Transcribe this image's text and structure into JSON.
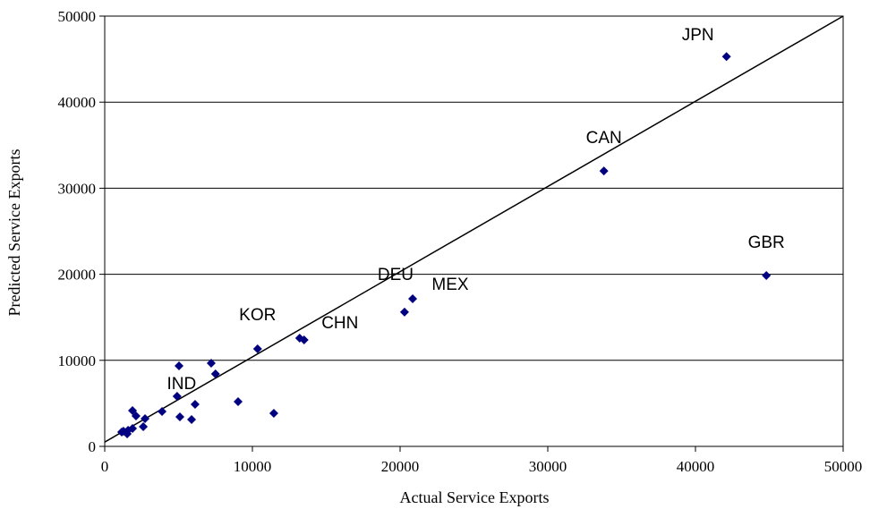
{
  "chart_data": {
    "type": "scatter",
    "x_label": "Actual Service Exports",
    "y_label": "Predicted Service Exports",
    "xlim": [
      0,
      50000
    ],
    "ylim": [
      0,
      50000
    ],
    "xticks": [
      0,
      10000,
      20000,
      30000,
      40000,
      50000
    ],
    "yticks": [
      0,
      10000,
      20000,
      30000,
      40000,
      50000
    ],
    "grid": true,
    "series": [
      {
        "color": "#000080",
        "x": [
          42100,
          33800,
          44800,
          20850,
          20300,
          10350,
          13200,
          13500,
          4900,
          5030,
          7210,
          7500,
          9030,
          11450,
          6120,
          5880,
          5090,
          3880,
          2730,
          2610,
          1880,
          2120,
          1880,
          1580,
          1270,
          1150,
          1520
        ],
        "values": [
          45300,
          32000,
          19850,
          17150,
          15600,
          11330,
          12580,
          12370,
          5820,
          9360,
          9670,
          8420,
          5200,
          3850,
          4890,
          3120,
          3430,
          4050,
          3220,
          2290,
          4160,
          3530,
          2080,
          1870,
          1770,
          1660,
          1460
        ],
        "labels": [
          "JPN",
          "CAN",
          "GBR",
          "MEX",
          "DEU",
          "KOR",
          "CHN",
          null,
          "IND",
          null,
          null,
          null,
          null,
          null,
          null,
          null,
          null,
          null,
          null,
          null,
          null,
          null,
          null,
          null,
          null,
          null,
          null
        ]
      }
    ],
    "fit_line": {
      "color": "#000000",
      "x": [
        0,
        50000
      ],
      "values": [
        500,
        50000
      ]
    }
  }
}
